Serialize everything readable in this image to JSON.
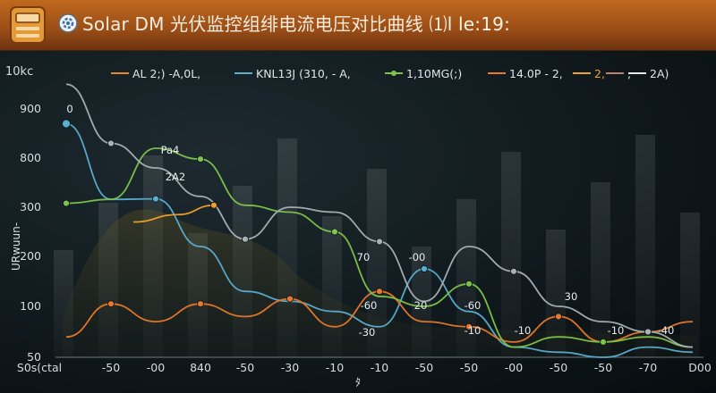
{
  "header": {
    "title": "Solar DM 光伏监控组绯电流电压对比曲线",
    "suffix": "⑴l le:19:",
    "icon": "solar-panel-icon",
    "gear_icon": "gear-icon",
    "accent": "#c0681f"
  },
  "chart_data": {
    "type": "line",
    "title": "Solar DM 光伏监控组绯电流电压对比曲线",
    "ylabel": "URwuun-",
    "xlabel": "ﾀ",
    "y_top_label": "10kc",
    "y_ticks": [
      50,
      100,
      200,
      300,
      800,
      900
    ],
    "x_ticks": [
      "S0s(ctal",
      "-50",
      "-00",
      "840",
      "-50",
      "-30",
      "-10",
      "-10",
      "-50",
      "-50",
      "-00",
      "-50",
      "-50",
      "-70",
      "D00"
    ],
    "grid": false,
    "legend_position": "top",
    "legend": [
      {
        "label": "AL 2;) -A,0L,",
        "color": "#e58a2c"
      },
      {
        "label": "KNL13J (310, - A,",
        "color": "#5aaed0"
      },
      {
        "label": "1,10MG(;)",
        "color": "#7ec44a"
      },
      {
        "label": "14.0P - 2,",
        "color": "#e8782a"
      },
      {
        "label": "2,",
        "color": "#f0a028"
      },
      {
        "label": ",",
        "color": "#c08070"
      },
      {
        "label": "2A)",
        "color": "#e8e8e8"
      }
    ],
    "series": [
      {
        "color": "#5aaed0",
        "x": [
          0,
          1,
          2,
          3,
          4,
          5,
          6,
          7,
          8,
          9,
          10,
          11,
          12,
          13,
          14
        ],
        "y": [
          870,
          380,
          385,
          220,
          130,
          110,
          95,
          80,
          175,
          95,
          60,
          55,
          50,
          60,
          55
        ]
      },
      {
        "color": "#e8782a",
        "x": [
          0,
          1,
          2,
          3,
          4,
          5,
          6,
          7,
          8,
          9,
          10,
          11,
          12,
          13,
          14
        ],
        "y": [
          70,
          105,
          85,
          105,
          90,
          115,
          80,
          130,
          85,
          80,
          65,
          90,
          65,
          75,
          85
        ]
      },
      {
        "color": "#7ec44a",
        "x": [
          0,
          1,
          2,
          3,
          4,
          5,
          6,
          7,
          8,
          9,
          10,
          11,
          12,
          13,
          14
        ],
        "y": [
          340,
          380,
          820,
          790,
          320,
          290,
          250,
          120,
          100,
          145,
          60,
          70,
          65,
          70,
          60
        ]
      },
      {
        "color": "#a9b1b6",
        "x": [
          0,
          1,
          2,
          3,
          4,
          5,
          6,
          7,
          8,
          9,
          10,
          11,
          12,
          13,
          14
        ],
        "y": [
          960,
          830,
          700,
          410,
          235,
          300,
          290,
          230,
          110,
          220,
          170,
          100,
          85,
          75,
          60
        ]
      },
      {
        "color": "#f0a028",
        "x": [
          1.5,
          2.5,
          3.3
        ],
        "y": [
          270,
          285,
          320
        ]
      }
    ],
    "annotations": [
      "Pa4",
      "2A2",
      "0",
      "70",
      "-00",
      "-60",
      "20",
      "-60",
      "-10",
      "-30",
      "-10",
      "30",
      "-40",
      "-10"
    ]
  }
}
